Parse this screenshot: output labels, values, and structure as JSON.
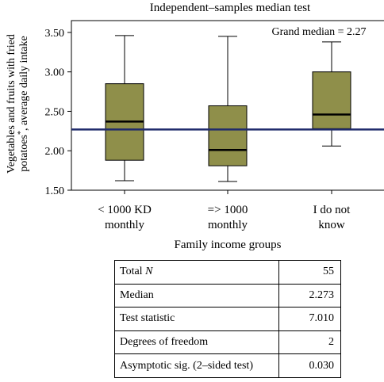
{
  "chart_data": {
    "type": "boxplot",
    "title": "Independent–samples median test",
    "annotation": "Grand median = 2.27",
    "ylabel_line1": "Vegetables and fruits with fried",
    "ylabel_line2_main": "potatoes",
    "ylabel_line2_sup": "*",
    "ylabel_line2_rest": ", average daily intake",
    "xlabel": "Family income groups",
    "ylim": [
      1.5,
      3.65
    ],
    "yticks": [
      "1.50",
      "2.00",
      "2.50",
      "3.00",
      "3.50"
    ],
    "grand_median": 2.27,
    "categories": [
      [
        "< 1000 KD",
        "monthly"
      ],
      [
        "=> 1000",
        "monthly"
      ],
      [
        "I do not",
        "know"
      ]
    ],
    "boxes": [
      {
        "min": 1.62,
        "q1": 1.88,
        "median": 2.37,
        "q3": 2.85,
        "max": 3.46
      },
      {
        "min": 1.61,
        "q1": 1.81,
        "median": 2.01,
        "q3": 2.57,
        "max": 3.45
      },
      {
        "min": 2.06,
        "q1": 2.28,
        "median": 2.46,
        "q3": 3.0,
        "max": 3.38
      }
    ],
    "box_color": "#8f8f4a",
    "median_line_color": "#1f2a6b",
    "legend": "none",
    "grid": false
  },
  "stats_table": {
    "total_label": "Total",
    "total_symbol": "N",
    "total_value": "55",
    "rows": [
      {
        "label": "Median",
        "value": "2.273"
      },
      {
        "label": "Test statistic",
        "value": "7.010"
      },
      {
        "label": "Degrees of freedom",
        "value": "2"
      },
      {
        "label": "Asymptotic sig. (2–sided test)",
        "value": "0.030"
      }
    ]
  }
}
